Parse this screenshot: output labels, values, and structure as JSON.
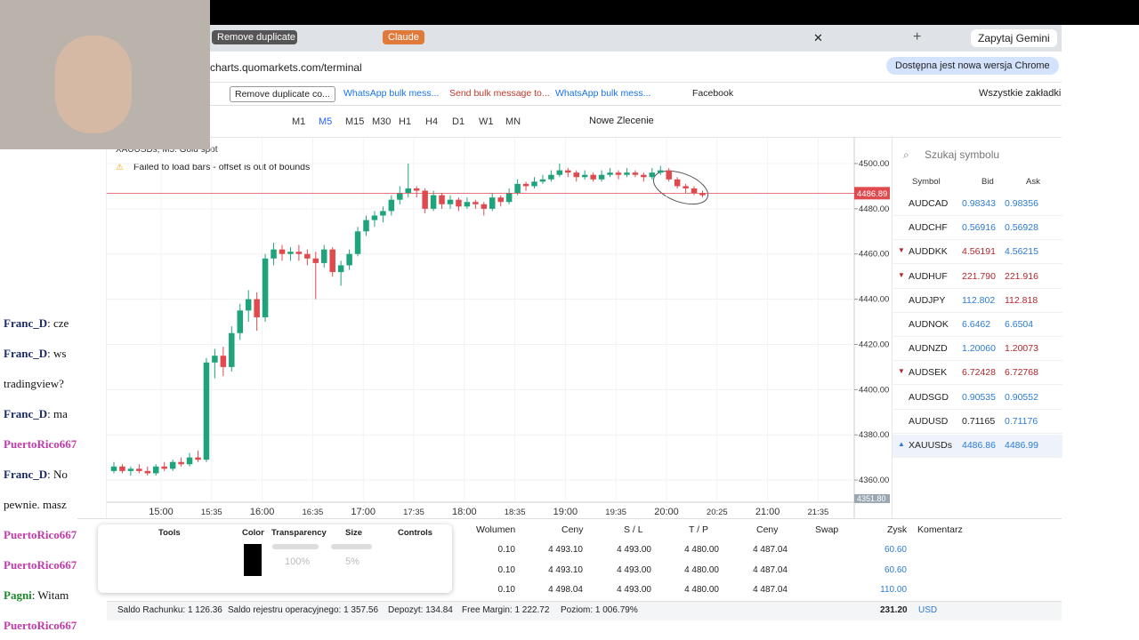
{
  "browser": {
    "tabs": [
      "Remove duplicate co",
      "Claude",
      "Zapytaj Gemini"
    ],
    "url": "charts.quomarkets.com/terminal",
    "update_notice": "Dostępna jest nowa wersja Chrome",
    "bookmarks": [
      "Remove duplicate co...",
      "WhatsApp bulk mess...",
      "Send bulk message to...",
      "WhatsApp bulk mess...",
      "Facebook"
    ],
    "all_bookmarks": "Wszystkie zakładki"
  },
  "toolbar": {
    "timeframes": [
      "M1",
      "M5",
      "M15",
      "M30",
      "H1",
      "H4",
      "D1",
      "W1",
      "MN"
    ],
    "active_timeframe": "M5",
    "new_order": "Nowe Zlecenie"
  },
  "chart": {
    "type": "candlestick",
    "symbol": "XAUUSDs, M5: Gold spot",
    "warning": "Failed to load bars - offset is out of bounds",
    "up_color": "#1fa37b",
    "down_color": "#e04a4e",
    "candles": [
      [
        4364,
        4368,
        4363,
        4366
      ],
      [
        4366,
        4367,
        4363,
        4364
      ],
      [
        4364,
        4366,
        4362,
        4365
      ],
      [
        4365,
        4367,
        4363,
        4364
      ],
      [
        4364,
        4366,
        4362,
        4363
      ],
      [
        4363,
        4367,
        4362,
        4366
      ],
      [
        4366,
        4368,
        4364,
        4365
      ],
      [
        4365,
        4369,
        4364,
        4368
      ],
      [
        4368,
        4370,
        4366,
        4367
      ],
      [
        4367,
        4372,
        4366,
        4370
      ],
      [
        4370,
        4373,
        4368,
        4369
      ],
      [
        4369,
        4414,
        4368,
        4412
      ],
      [
        4412,
        4418,
        4405,
        4415
      ],
      [
        4415,
        4419,
        4406,
        4410
      ],
      [
        4410,
        4428,
        4408,
        4425
      ],
      [
        4425,
        4438,
        4422,
        4435
      ],
      [
        4435,
        4444,
        4430,
        4440
      ],
      [
        4440,
        4443,
        4426,
        4432
      ],
      [
        4432,
        4460,
        4430,
        4458
      ],
      [
        4458,
        4465,
        4455,
        4462
      ],
      [
        4462,
        4464,
        4457,
        4460
      ],
      [
        4460,
        4463,
        4457,
        4461
      ],
      [
        4461,
        4464,
        4457,
        4460
      ],
      [
        4460,
        4462,
        4455,
        4458
      ],
      [
        4458,
        4461,
        4440,
        4456
      ],
      [
        4456,
        4464,
        4454,
        4462
      ],
      [
        4462,
        4463,
        4450,
        4452
      ],
      [
        4452,
        4457,
        4446,
        4455
      ],
      [
        4455,
        4462,
        4453,
        4460
      ],
      [
        4460,
        4472,
        4459,
        4470
      ],
      [
        4470,
        4477,
        4468,
        4475
      ],
      [
        4475,
        4479,
        4472,
        4477
      ],
      [
        4477,
        4481,
        4474,
        4479
      ],
      [
        4479,
        4486,
        4477,
        4484
      ],
      [
        4484,
        4490,
        4482,
        4487
      ],
      [
        4487,
        4500,
        4485,
        4489
      ],
      [
        4489,
        4490,
        4485,
        4488
      ],
      [
        4488,
        4489,
        4478,
        4480
      ],
      [
        4480,
        4488,
        4479,
        4486
      ],
      [
        4486,
        4487,
        4480,
        4482
      ],
      [
        4482,
        4486,
        4480,
        4484
      ],
      [
        4484,
        4485,
        4479,
        4481
      ],
      [
        4481,
        4485,
        4480,
        4483
      ],
      [
        4483,
        4484,
        4480,
        4482
      ],
      [
        4482,
        4483,
        4477,
        4480
      ],
      [
        4480,
        4487,
        4479,
        4485
      ],
      [
        4485,
        4486,
        4481,
        4483
      ],
      [
        4483,
        4489,
        4482,
        4487
      ],
      [
        4487,
        4493,
        4486,
        4491
      ],
      [
        4491,
        4492,
        4488,
        4490
      ],
      [
        4490,
        4494,
        4489,
        4492
      ],
      [
        4492,
        4495,
        4491,
        4493
      ],
      [
        4493,
        4497,
        4492,
        4495
      ],
      [
        4495,
        4500,
        4494,
        4497
      ],
      [
        4497,
        4498,
        4494,
        4496
      ],
      [
        4496,
        4497,
        4492,
        4494
      ],
      [
        4494,
        4497,
        4493,
        4495
      ],
      [
        4495,
        4496,
        4492,
        4493
      ],
      [
        4493,
        4497,
        4492,
        4495
      ],
      [
        4495,
        4498,
        4494,
        4496
      ],
      [
        4496,
        4497,
        4493,
        4495
      ],
      [
        4495,
        4498,
        4494,
        4496
      ],
      [
        4496,
        4497,
        4494,
        4495
      ],
      [
        4495,
        4496,
        4492,
        4494
      ],
      [
        4494,
        4498,
        4493,
        4496
      ],
      [
        4496,
        4499,
        4495,
        4497
      ],
      [
        4497,
        4498,
        4492,
        4493
      ],
      [
        4493,
        4494,
        4489,
        4490
      ],
      [
        4490,
        4491,
        4487,
        4489
      ],
      [
        4489,
        4490,
        4486,
        4487
      ],
      [
        4487,
        4488,
        4485,
        4486
      ]
    ],
    "ylim": [
      4350.2,
      4511.4
    ],
    "yticks": [
      {
        "value": 4500,
        "label": "4500.00"
      },
      {
        "value": 4480,
        "label": "4480.00"
      },
      {
        "value": 4460,
        "label": "4460.00"
      },
      {
        "value": 4440,
        "label": "4440.00"
      },
      {
        "value": 4420,
        "label": "4420.00"
      },
      {
        "value": 4400,
        "label": "4400.00"
      },
      {
        "value": 4380,
        "label": "4380.00"
      },
      {
        "value": 4360,
        "label": "4360.00"
      }
    ],
    "current_price": {
      "value": 4486.89,
      "label": "4486.89"
    },
    "bottom_price": {
      "value": 4351.8,
      "label": "4351.80"
    },
    "time_labels": [
      "15:00",
      "15:35",
      "16:00",
      "16:35",
      "17:00",
      "17:35",
      "18:00",
      "18:35",
      "19:00",
      "19:35",
      "20:00",
      "20:25",
      "21:00",
      "21:35"
    ]
  },
  "watchlist": {
    "search": "Szukaj symbolu",
    "headers": [
      "Symbol",
      "Bid",
      "Ask"
    ],
    "rows": [
      {
        "symbol": "AUDCAD",
        "bid": "0.98343",
        "ask": "0.98356",
        "bid_color": "#2b7bd4",
        "ask_color": "#2b7bd4"
      },
      {
        "symbol": "AUDCHF",
        "bid": "0.56916",
        "ask": "0.56928",
        "bid_color": "#2b7bd4",
        "ask_color": "#2b7bd4"
      },
      {
        "symbol": "AUDDKK",
        "bid": "4.56191",
        "ask": "4.56215",
        "bid_color": "#b5262b",
        "ask_color": "#2b7bd4",
        "arrow": "down"
      },
      {
        "symbol": "AUDHUF",
        "bid": "221.790",
        "ask": "221.916",
        "bid_color": "#b5262b",
        "ask_color": "#b5262b",
        "arrow": "down"
      },
      {
        "symbol": "AUDJPY",
        "bid": "112.802",
        "ask": "112.818",
        "bid_color": "#2b7bd4",
        "ask_color": "#b5262b"
      },
      {
        "symbol": "AUDNOK",
        "bid": "6.6462",
        "ask": "6.6504",
        "bid_color": "#2b7bd4",
        "ask_color": "#2b7bd4"
      },
      {
        "symbol": "AUDNZD",
        "bid": "1.20060",
        "ask": "1.20073",
        "bid_color": "#2b7bd4",
        "ask_color": "#b5262b"
      },
      {
        "symbol": "AUDSEK",
        "bid": "6.72428",
        "ask": "6.72768",
        "bid_color": "#b5262b",
        "ask_color": "#b5262b",
        "arrow": "down"
      },
      {
        "symbol": "AUDSGD",
        "bid": "0.90535",
        "ask": "0.90552",
        "bid_color": "#2b7bd4",
        "ask_color": "#2b7bd4"
      },
      {
        "symbol": "AUDUSD",
        "bid": "0.71165",
        "ask": "0.71176",
        "bid_color": "#222222",
        "ask_color": "#2b7bd4"
      },
      {
        "symbol": "XAUUSDs",
        "bid": "4486.86",
        "ask": "4486.99",
        "bid_color": "#2b7bd4",
        "ask_color": "#2b7bd4",
        "arrow": "up"
      }
    ]
  },
  "positions": {
    "headers": [
      "Wolumen",
      "Ceny",
      "S / L",
      "T / P",
      "Ceny",
      "Swap",
      "Zysk",
      "Komentarz"
    ],
    "rows": [
      [
        "0.10",
        "4 493.10",
        "4 493.00",
        "4 480.00",
        "4 487.04",
        "60.60"
      ],
      [
        "0.10",
        "4 493.10",
        "4 493.00",
        "4 480.00",
        "4 487.04",
        "60.60"
      ],
      [
        "0.10",
        "4 498.04",
        "4 493.00",
        "4 480.00",
        "4 487.04",
        "110.00"
      ]
    ],
    "footer": [
      "Saldo Rachunku: 1 126.36",
      "Saldo rejestru operacyjnego: 1 357.56",
      "Depozyt: 134.84",
      "Free Margin: 1 222.72",
      "Poziom: 1 006.79%"
    ],
    "total": "231.20",
    "currency": "USD"
  },
  "tools_panel": {
    "sections": [
      "Tools",
      "Color",
      "Transparency",
      "Size",
      "Controls"
    ],
    "transparency": "100%",
    "size": "5%"
  },
  "chat": [
    {
      "user": "Franc_D",
      "text": ": cze"
    },
    {
      "user": "Franc_D",
      "text": ": ws"
    },
    {
      "text": "tradingview?"
    },
    {
      "user": "Franc_D",
      "text": ": ma"
    },
    {
      "user": "PuertoRico667"
    },
    {
      "user": "Franc_D",
      "text": ": No"
    },
    {
      "text": "pewnie. masz"
    },
    {
      "user": "PuertoRico667"
    },
    {
      "user": "PuertoRico667"
    },
    {
      "user": "Pagni",
      "text": ": Witam"
    },
    {
      "user": "PuertoRico667"
    }
  ]
}
